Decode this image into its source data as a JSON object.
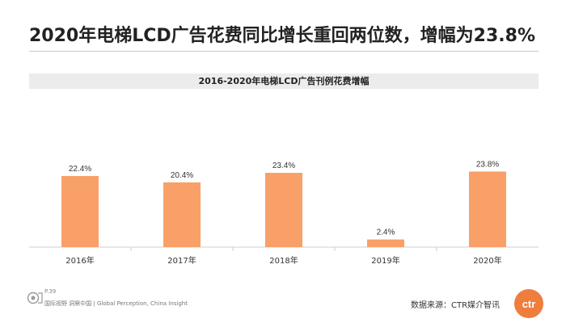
{
  "headline": "2020年电梯LCD广告花费同比增长重回两位数，增幅为23.8%",
  "footer": {
    "page": "P.39",
    "tagline": "国际视野 洞察中国 | Global Perception, China Insight",
    "source": "数据来源：CTR媒介智讯",
    "logo_text": "ctr"
  },
  "colors": {
    "bar": "#f8a068",
    "title_bar": "#ececec",
    "brand": "#ef7d3c"
  },
  "chart_data": {
    "type": "bar",
    "title": "2016-2020年电梯LCD广告刊例花费增幅",
    "categories": [
      "2016年",
      "2017年",
      "2018年",
      "2019年",
      "2020年"
    ],
    "values": [
      22.4,
      20.4,
      23.4,
      2.4,
      23.8
    ],
    "data_labels": [
      "22.4%",
      "20.4%",
      "23.4%",
      "2.4%",
      "23.8%"
    ],
    "ylim": [
      0,
      40
    ],
    "grid": false,
    "legend": "none",
    "xlabel": "",
    "ylabel": ""
  }
}
